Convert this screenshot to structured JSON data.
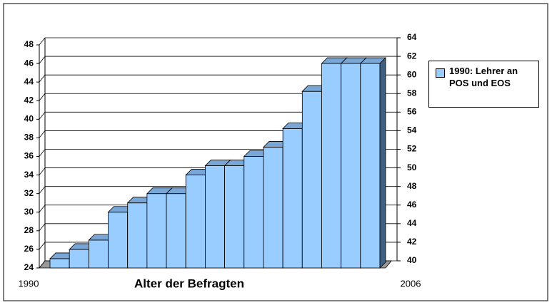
{
  "chart_data": {
    "type": "bar3d",
    "xlabel": "Alter der Befragten",
    "categories": [
      "1990",
      null,
      null,
      null,
      null,
      null,
      null,
      null,
      null,
      null,
      null,
      null,
      null,
      null,
      null,
      null,
      "2006"
    ],
    "series": [
      {
        "name": "1990: Lehrer an POS und EOS",
        "color": "#99ccff",
        "values": [
          25,
          26,
          27,
          30,
          31,
          32,
          32,
          34,
          35,
          35,
          36,
          37,
          39,
          43,
          46,
          46,
          46
        ]
      }
    ],
    "ylim": [
      24,
      48
    ],
    "yticks": [
      24,
      26,
      28,
      30,
      32,
      34,
      36,
      38,
      40,
      42,
      44,
      46,
      48
    ],
    "y2lim": [
      40,
      64
    ],
    "y2ticks": [
      40,
      42,
      44,
      46,
      48,
      50,
      52,
      54,
      56,
      58,
      60,
      62,
      64
    ],
    "grid": true,
    "legend": "right"
  }
}
